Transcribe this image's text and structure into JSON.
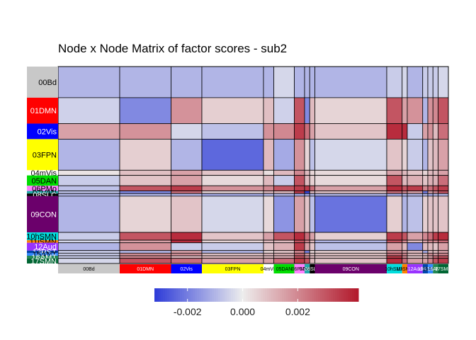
{
  "chart_data": {
    "type": "heatmap",
    "title": "Node x Node Matrix of factor scores - sub2",
    "networks": [
      {
        "name": "00Bd",
        "color": "#C8C8C8",
        "nodes": 12
      },
      {
        "name": "01DMN",
        "color": "#FF0000",
        "nodes": 10
      },
      {
        "name": "02Vis",
        "color": "#0000FF",
        "nodes": 6
      },
      {
        "name": "03FPN",
        "color": "#FFFF00",
        "nodes": 12
      },
      {
        "name": "04mVis",
        "color": "#FFFFFF",
        "nodes": 2
      },
      {
        "name": "05DAN",
        "color": "#00DD00",
        "nodes": 4
      },
      {
        "name": "06PMo",
        "color": "#FF80FF",
        "nodes": 2
      },
      {
        "name": "07VAN",
        "color": "#22AAAA",
        "nodes": 1
      },
      {
        "name": "08SLC",
        "color": "#000000",
        "nodes": 1
      },
      {
        "name": "09CON",
        "color": "#6B006B",
        "nodes": 14
      },
      {
        "name": "10hSMN",
        "color": "#00DDDD",
        "nodes": 3
      },
      {
        "name": "11iSMN",
        "color": "#FF8000",
        "nodes": 1
      },
      {
        "name": "12Aud",
        "color": "#9933FF",
        "nodes": 3
      },
      {
        "name": "13RST",
        "color": "#0044AA",
        "nodes": 1
      },
      {
        "name": "15ANT",
        "color": "#3388FF",
        "nodes": 1
      },
      {
        "name": "16AMT",
        "color": "#228855",
        "nodes": 1
      },
      {
        "name": "17SMN",
        "color": "#006633",
        "nodes": 2
      }
    ],
    "block_values": [
      [
        -0.001,
        -0.001,
        -0.001,
        -0.001,
        -0.001,
        -0.0004,
        -0.001,
        -0.001,
        -0.001,
        -0.001,
        -0.0006,
        -0.0004,
        -0.001,
        -0.0006,
        -0.0006,
        -0.0006,
        -0.0004
      ],
      [
        -0.0005,
        -0.0018,
        0.0018,
        0.0006,
        0.0009,
        -0.0005,
        0.003,
        -0.0018,
        0.001,
        0.0005,
        0.003,
        0.0015,
        0.0018,
        -0.001,
        0.0018,
        0.002,
        0.003
      ],
      [
        0.0015,
        0.0018,
        -0.0004,
        -0.0008,
        0.0018,
        0.002,
        0.0035,
        0.0025,
        0.0015,
        0.0008,
        0.0038,
        0.0038,
        -0.0006,
        0.0015,
        0.0018,
        0.001,
        0.0025
      ],
      [
        -0.001,
        0.0006,
        -0.001,
        -0.0024,
        0.001,
        -0.0012,
        0.0018,
        0.0005,
        -0.0008,
        -0.0004,
        0.0008,
        0.0005,
        -0.0006,
        -0.001,
        0.0008,
        0.001,
        0.0015
      ],
      [
        0.0002,
        0.0009,
        0.0015,
        0.0008,
        0.0003,
        0.001,
        0.002,
        0.001,
        0.0005,
        0.0004,
        0.0015,
        0.001,
        0.0008,
        0.0005,
        0.001,
        0.001,
        0.0015
      ],
      [
        -0.0006,
        0.0008,
        0.0015,
        0.0004,
        0.001,
        -0.0006,
        0.003,
        0.001,
        0.0006,
        0.0004,
        0.003,
        0.001,
        0.0012,
        0.0008,
        0.0012,
        0.0012,
        0.0025
      ],
      [
        -0.0008,
        0.003,
        0.0035,
        0.0018,
        0.002,
        0.003,
        0.0035,
        0.0035,
        0.0025,
        0.0015,
        0.0038,
        0.003,
        0.0035,
        0.002,
        0.0025,
        0.003,
        0.0035
      ],
      [
        -0.0008,
        -0.0018,
        0.0025,
        0.0005,
        0.001,
        0.001,
        0.0035,
        -0.003,
        0.001,
        0.0008,
        0.0025,
        0.002,
        0.0015,
        -0.002,
        0.0015,
        0.002,
        0.003
      ],
      [
        -0.001,
        -0.001,
        -0.001,
        -0.0012,
        -0.001,
        -0.001,
        -0.0012,
        -0.0012,
        -0.001,
        -0.001,
        -0.0012,
        -0.001,
        -0.001,
        -0.001,
        -0.0012,
        -0.001,
        -0.001
      ],
      [
        -0.001,
        0.0005,
        0.0008,
        -0.0004,
        0.0004,
        -0.0016,
        0.0015,
        0.0008,
        -0.0008,
        -0.0022,
        0.0006,
        -0.001,
        -0.0008,
        0.0006,
        0.0008,
        0.0008,
        0.0008
      ],
      [
        -0.0006,
        0.003,
        0.0038,
        0.0008,
        0.0015,
        0.003,
        0.0038,
        0.0025,
        0.0015,
        0.0006,
        0.0035,
        0.003,
        0.0015,
        0.002,
        0.0025,
        0.0035,
        0.0038
      ],
      [
        -0.0004,
        0.0015,
        0.0038,
        0.0005,
        0.001,
        0.001,
        0.003,
        0.002,
        0.001,
        -0.001,
        0.003,
        0.002,
        0.001,
        0.0015,
        0.002,
        0.002,
        0.0025
      ],
      [
        -0.001,
        0.0018,
        -0.0006,
        -0.0006,
        0.0008,
        0.0012,
        0.0035,
        0.0015,
        0.0008,
        -0.0008,
        0.0015,
        0.001,
        -0.0018,
        0.001,
        0.001,
        0.0008,
        0.0015
      ],
      [
        -0.0006,
        -0.001,
        0.0015,
        -0.001,
        0.0005,
        0.0008,
        0.002,
        -0.002,
        0.0005,
        0.0006,
        0.002,
        0.0015,
        0.001,
        -0.0012,
        0.001,
        0.001,
        0.0015
      ],
      [
        -0.0006,
        0.0018,
        0.0018,
        0.0008,
        0.001,
        0.0012,
        0.0025,
        0.0015,
        0.0008,
        0.0008,
        0.0025,
        0.002,
        0.001,
        0.001,
        0.0018,
        0.0015,
        0.002
      ],
      [
        -0.0006,
        0.002,
        0.001,
        0.001,
        0.001,
        0.0012,
        0.003,
        0.002,
        0.001,
        0.0008,
        0.0035,
        0.002,
        0.0008,
        0.001,
        0.0015,
        0.0025,
        0.003
      ],
      [
        -0.0004,
        0.003,
        0.0025,
        0.0015,
        0.0015,
        0.0025,
        0.0035,
        0.003,
        0.001,
        0.0008,
        0.0038,
        0.0025,
        0.0015,
        0.0015,
        0.002,
        0.003,
        0.0035
      ]
    ],
    "colorbar": {
      "ticks": [
        -0.002,
        0.0,
        0.002
      ],
      "tick_labels": [
        "-0.002",
        "0.000",
        "0.002"
      ],
      "range": [
        -0.0032,
        0.0042
      ],
      "low_color": "#2D3BD8",
      "mid_color": "#EDEDED",
      "high_color": "#B2182B"
    },
    "xlabel": "",
    "ylabel": ""
  }
}
